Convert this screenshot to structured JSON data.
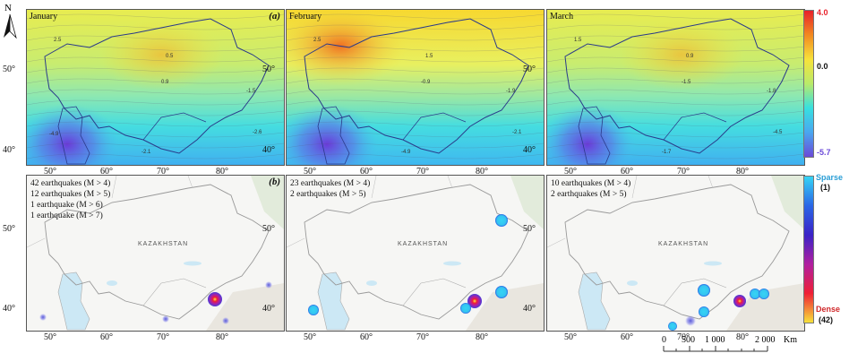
{
  "months": [
    "January",
    "February",
    "March"
  ],
  "panel_labels": {
    "top": "(a)",
    "bottom": "(b)"
  },
  "lat_ticks": [
    "50°",
    "40°"
  ],
  "lon_ticks": [
    "50°",
    "60°",
    "70°",
    "80°"
  ],
  "country_label": "KAZAKHSTAN",
  "north": "N",
  "earthquake_counts": [
    [
      "42 earthquakes (M > 4)",
      "12 earthquakes (M > 5)",
      "1 earthquake (M > 6)",
      "1 earthquake (M > 7)"
    ],
    [
      "23 earthquakes (M > 4)",
      "2 earthquakes (M > 5)"
    ],
    [
      "10 earthquakes (M > 4)",
      "2 earthquakes (M > 5)"
    ]
  ],
  "colorbar_anomaly": {
    "max": "4.0",
    "mid": "0.0",
    "min": "-5.7",
    "colors": [
      "#e8202a",
      "#f28a20",
      "#f7e23a",
      "#b9ea6a",
      "#37e0e0",
      "#4aa6f0",
      "#6b4ad8"
    ]
  },
  "colorbar_density": {
    "top": "Sparse",
    "top_count": "(1)",
    "bottom": "Dense",
    "bottom_count": "(42)",
    "colors": [
      "#35d4f5",
      "#2a66e6",
      "#3a23c7",
      "#b01fa0",
      "#ef1f35",
      "#f7e23a"
    ]
  },
  "scale_bar": {
    "ticks": [
      "0",
      "500",
      "1 000",
      "2 000"
    ],
    "unit": "Km"
  },
  "contour_labels": [
    [
      "2.5",
      "0.5",
      "0.9",
      "-1.5",
      "-2.6",
      "-2.1",
      "-4.9"
    ],
    [
      "2.5",
      "1.5",
      "-0.9",
      "-1.9",
      "-2.1",
      "-4.9"
    ],
    [
      "1.5",
      "0.9",
      "-1.5",
      "-1.8",
      "-4.5",
      "-1.7"
    ]
  ]
}
